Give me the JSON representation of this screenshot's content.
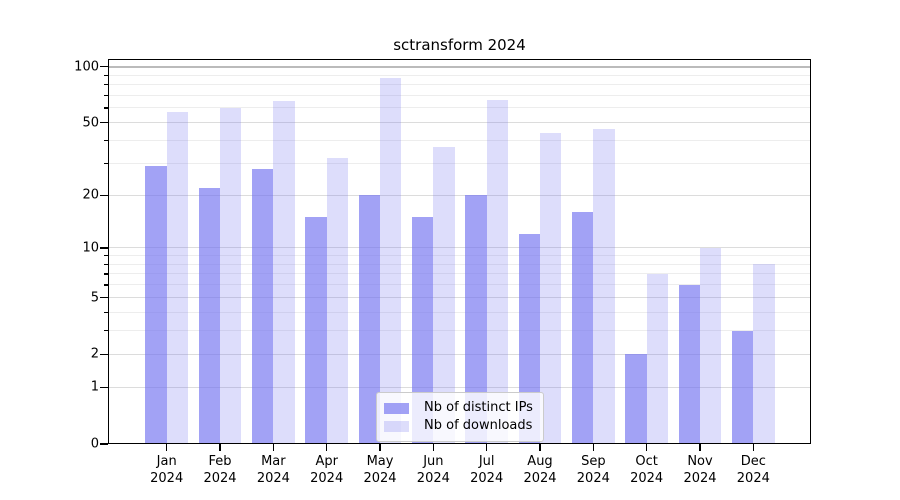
{
  "title": "sctransform 2024",
  "colors": {
    "bar_ips": "rgba(114,114,240,0.66)",
    "bar_downloads": "rgba(114,114,240,0.245)",
    "grid_major": "#dcdcdc",
    "grid_minor": "#ededed",
    "grid_100": "#bbbbbb",
    "axis": "#000000"
  },
  "legend": {
    "items": [
      {
        "label": "Nb of distinct IPs",
        "color_key": "bar_ips"
      },
      {
        "label": "Nb of downloads",
        "color_key": "bar_downloads"
      }
    ]
  },
  "chart_data": {
    "type": "bar",
    "title": "sctransform 2024",
    "yscale": "log10(1+y)",
    "grid": true,
    "legend_position": "lower center",
    "categories": [
      "Jan 2024",
      "Feb 2024",
      "Mar 2024",
      "Apr 2024",
      "May 2024",
      "Jun 2024",
      "Jul 2024",
      "Aug 2024",
      "Sep 2024",
      "Oct 2024",
      "Nov 2024",
      "Dec 2024"
    ],
    "series": [
      {
        "name": "Nb of distinct IPs",
        "key": "bar_ips",
        "values": [
          29,
          22,
          28,
          15,
          20,
          15,
          20,
          12,
          16,
          2,
          6,
          3
        ]
      },
      {
        "name": "Nb of downloads",
        "key": "bar_downloads",
        "values": [
          57,
          60,
          65,
          32,
          87,
          37,
          66,
          44,
          46,
          7,
          10,
          8
        ]
      }
    ],
    "yticks_major": [
      0,
      1,
      2,
      5,
      10,
      20,
      50,
      100
    ],
    "yticks_minor": [
      3,
      4,
      6,
      7,
      8,
      9,
      30,
      40,
      60,
      70,
      80,
      90
    ],
    "ylim": [
      0,
      110
    ],
    "xlabel": "",
    "ylabel": ""
  }
}
